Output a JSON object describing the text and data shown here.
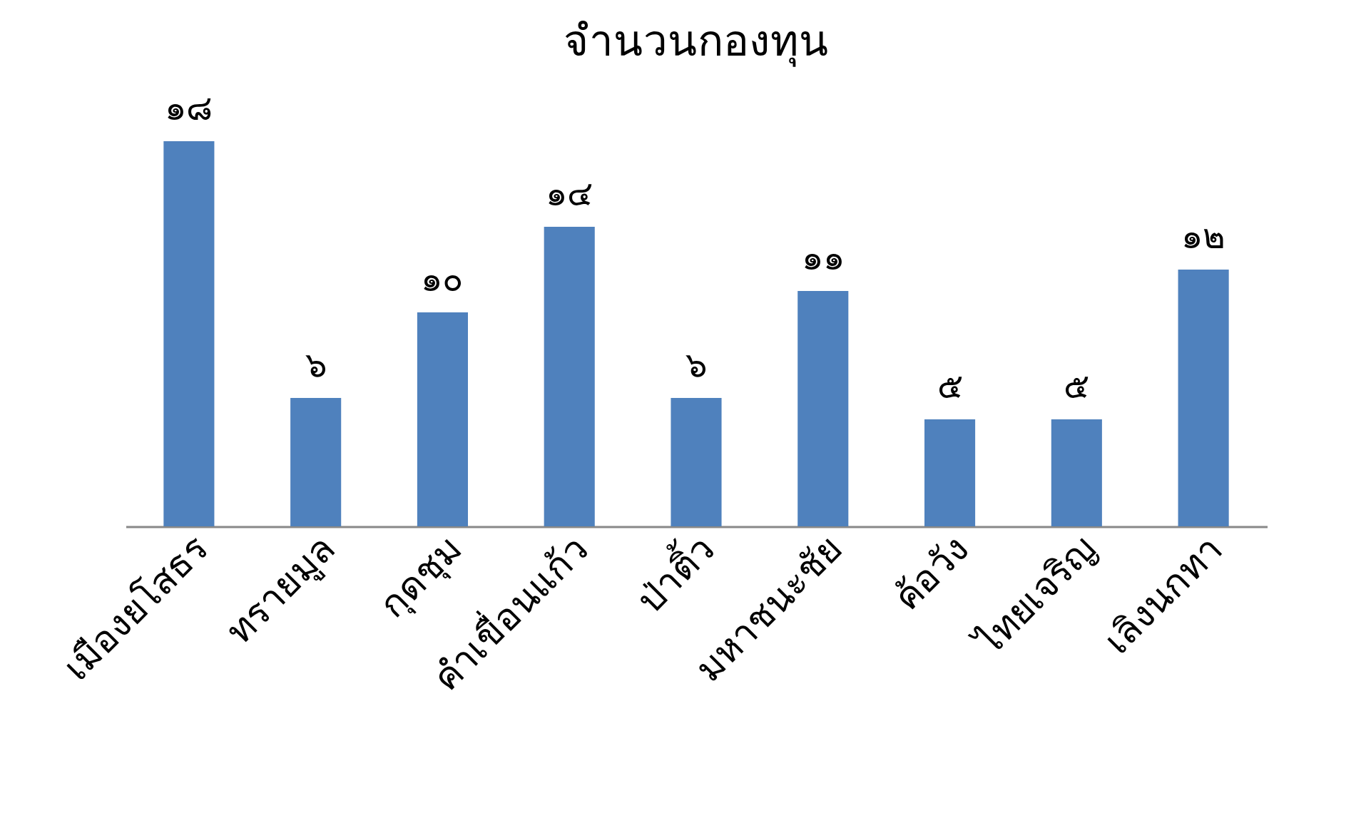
{
  "chart_data": {
    "type": "bar",
    "title": "จำนวนกองทุน",
    "categories": [
      "เมืองยโสธร",
      "ทรายมูล",
      "กุดชุม",
      "คำเขื่อนแก้ว",
      "ป่าติ้ว",
      "มหาชนะชัย",
      "ค้อวัง",
      "ไทยเจริญ",
      "เลิงนกทา"
    ],
    "values": [
      18,
      6,
      10,
      14,
      6,
      11,
      5,
      5,
      12
    ],
    "value_labels": [
      "๑๘",
      "๖",
      "๑๐",
      "๑๔",
      "๖",
      "๑๑",
      "๕",
      "๕",
      "๑๒"
    ],
    "color": "#4f81bd",
    "grid": false,
    "tick_labels": "x"
  }
}
